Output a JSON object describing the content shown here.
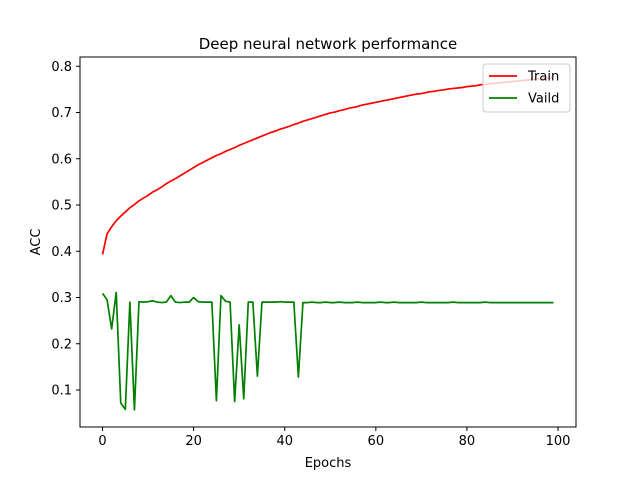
{
  "chart_data": {
    "type": "line",
    "title": "Deep neural network performance",
    "xlabel": "Epochs",
    "ylabel": "ACC",
    "xlim": [
      -4.95,
      103.95
    ],
    "ylim": [
      0.02,
      0.82
    ],
    "xticks": [
      0,
      20,
      40,
      60,
      80,
      100
    ],
    "yticks": [
      0.1,
      0.2,
      0.3,
      0.4,
      0.5,
      0.6,
      0.7,
      0.8
    ],
    "grid": false,
    "legend_position": "top-right",
    "series": [
      {
        "name": "Train",
        "color": "#ff0000",
        "x": [
          0,
          1,
          2,
          3,
          4,
          5,
          6,
          7,
          8,
          9,
          10,
          11,
          12,
          13,
          14,
          15,
          16,
          17,
          18,
          19,
          20,
          21,
          22,
          23,
          24,
          25,
          26,
          27,
          28,
          29,
          30,
          31,
          32,
          33,
          34,
          35,
          36,
          37,
          38,
          39,
          40,
          41,
          42,
          43,
          44,
          45,
          46,
          47,
          48,
          49,
          50,
          51,
          52,
          53,
          54,
          55,
          56,
          57,
          58,
          59,
          60,
          61,
          62,
          63,
          64,
          65,
          66,
          67,
          68,
          69,
          70,
          71,
          72,
          73,
          74,
          75,
          76,
          77,
          78,
          79,
          80,
          81,
          82,
          83,
          84,
          85,
          86,
          87,
          88,
          89,
          90,
          91,
          92,
          93,
          94,
          95,
          96,
          97,
          98,
          99
        ],
        "y": [
          0.393,
          0.438,
          0.453,
          0.466,
          0.476,
          0.485,
          0.494,
          0.501,
          0.509,
          0.515,
          0.521,
          0.528,
          0.533,
          0.539,
          0.546,
          0.552,
          0.557,
          0.563,
          0.569,
          0.575,
          0.581,
          0.587,
          0.592,
          0.597,
          0.602,
          0.607,
          0.611,
          0.616,
          0.62,
          0.624,
          0.629,
          0.633,
          0.637,
          0.641,
          0.645,
          0.649,
          0.653,
          0.657,
          0.66,
          0.664,
          0.667,
          0.67,
          0.674,
          0.677,
          0.681,
          0.684,
          0.687,
          0.69,
          0.693,
          0.696,
          0.699,
          0.701,
          0.704,
          0.706,
          0.709,
          0.711,
          0.713,
          0.716,
          0.718,
          0.72,
          0.722,
          0.724,
          0.726,
          0.728,
          0.73,
          0.732,
          0.734,
          0.736,
          0.738,
          0.74,
          0.741,
          0.743,
          0.745,
          0.746,
          0.748,
          0.749,
          0.751,
          0.752,
          0.753,
          0.754,
          0.756,
          0.757,
          0.758,
          0.76,
          0.761,
          0.762,
          0.763,
          0.764,
          0.765,
          0.766,
          0.767,
          0.768,
          0.769,
          0.77,
          0.771,
          0.772,
          0.773,
          0.774,
          0.775,
          0.776
        ]
      },
      {
        "name": "Vaild",
        "color": "#008000",
        "x": [
          0,
          1,
          2,
          3,
          4,
          5,
          6,
          7,
          8,
          9,
          10,
          11,
          12,
          13,
          14,
          15,
          16,
          17,
          18,
          19,
          20,
          21,
          22,
          23,
          24,
          25,
          26,
          27,
          28,
          29,
          30,
          31,
          32,
          33,
          34,
          35,
          36,
          37,
          38,
          39,
          40,
          41,
          42,
          43,
          44,
          45,
          46,
          47,
          48,
          49,
          50,
          51,
          52,
          53,
          54,
          55,
          56,
          57,
          58,
          59,
          60,
          61,
          62,
          63,
          64,
          65,
          66,
          67,
          68,
          69,
          70,
          71,
          72,
          73,
          74,
          75,
          76,
          77,
          78,
          79,
          80,
          81,
          82,
          83,
          84,
          85,
          86,
          87,
          88,
          89,
          90,
          91,
          92,
          93,
          94,
          95,
          96,
          97,
          98,
          99
        ],
        "y": [
          0.309,
          0.295,
          0.232,
          0.311,
          0.072,
          0.058,
          0.29,
          0.057,
          0.291,
          0.29,
          0.291,
          0.293,
          0.29,
          0.289,
          0.29,
          0.304,
          0.29,
          0.289,
          0.29,
          0.29,
          0.3,
          0.291,
          0.29,
          0.29,
          0.29,
          0.077,
          0.304,
          0.292,
          0.29,
          0.075,
          0.241,
          0.081,
          0.29,
          0.29,
          0.13,
          0.29,
          0.29,
          0.29,
          0.29,
          0.291,
          0.29,
          0.29,
          0.29,
          0.128,
          0.289,
          0.289,
          0.29,
          0.289,
          0.289,
          0.29,
          0.289,
          0.289,
          0.29,
          0.289,
          0.289,
          0.289,
          0.29,
          0.289,
          0.289,
          0.289,
          0.289,
          0.29,
          0.289,
          0.289,
          0.29,
          0.289,
          0.289,
          0.289,
          0.289,
          0.289,
          0.29,
          0.289,
          0.289,
          0.289,
          0.289,
          0.289,
          0.289,
          0.29,
          0.289,
          0.289,
          0.289,
          0.289,
          0.289,
          0.289,
          0.29,
          0.289,
          0.289,
          0.289,
          0.289,
          0.289,
          0.289,
          0.289,
          0.289,
          0.289,
          0.289,
          0.289,
          0.289,
          0.289,
          0.289,
          0.289
        ]
      }
    ]
  }
}
